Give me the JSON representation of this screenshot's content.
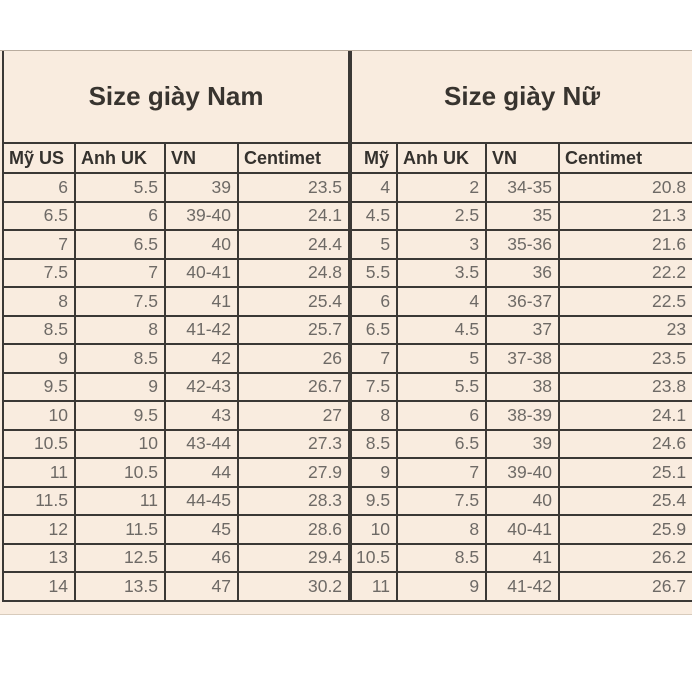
{
  "colors": {
    "page_background": "#ffffff",
    "panel_background": "#f9ecdf",
    "border": "#3b3835",
    "heading_text": "#34312d",
    "data_text": "#6e6a66"
  },
  "chart_data": [
    {
      "type": "table",
      "title": "Size giày Nam",
      "columns": [
        "Mỹ US",
        "Anh UK",
        "VN",
        "Centimet"
      ],
      "rows": [
        [
          "6",
          "5.5",
          "39",
          "23.5"
        ],
        [
          "6.5",
          "6",
          "39-40",
          "24.1"
        ],
        [
          "7",
          "6.5",
          "40",
          "24.4"
        ],
        [
          "7.5",
          "7",
          "40-41",
          "24.8"
        ],
        [
          "8",
          "7.5",
          "41",
          "25.4"
        ],
        [
          "8.5",
          "8",
          "41-42",
          "25.7"
        ],
        [
          "9",
          "8.5",
          "42",
          "26"
        ],
        [
          "9.5",
          "9",
          "42-43",
          "26.7"
        ],
        [
          "10",
          "9.5",
          "43",
          "27"
        ],
        [
          "10.5",
          "10",
          "43-44",
          "27.3"
        ],
        [
          "11",
          "10.5",
          "44",
          "27.9"
        ],
        [
          "11.5",
          "11",
          "44-45",
          "28.3"
        ],
        [
          "12",
          "11.5",
          "45",
          "28.6"
        ],
        [
          "13",
          "12.5",
          "46",
          "29.4"
        ],
        [
          "14",
          "13.5",
          "47",
          "30.2"
        ]
      ]
    },
    {
      "type": "table",
      "title": "Size giày Nữ",
      "columns": [
        "Mỹ",
        "Anh UK",
        "VN",
        "Centimet"
      ],
      "rows": [
        [
          "4",
          "2",
          "34-35",
          "20.8"
        ],
        [
          "4.5",
          "2.5",
          "35",
          "21.3"
        ],
        [
          "5",
          "3",
          "35-36",
          "21.6"
        ],
        [
          "5.5",
          "3.5",
          "36",
          "22.2"
        ],
        [
          "6",
          "4",
          "36-37",
          "22.5"
        ],
        [
          "6.5",
          "4.5",
          "37",
          "23"
        ],
        [
          "7",
          "5",
          "37-38",
          "23.5"
        ],
        [
          "7.5",
          "5.5",
          "38",
          "23.8"
        ],
        [
          "8",
          "6",
          "38-39",
          "24.1"
        ],
        [
          "8.5",
          "6.5",
          "39",
          "24.6"
        ],
        [
          "9",
          "7",
          "39-40",
          "25.1"
        ],
        [
          "9.5",
          "7.5",
          "40",
          "25.4"
        ],
        [
          "10",
          "8",
          "40-41",
          "25.9"
        ],
        [
          "10.5",
          "8.5",
          "41",
          "26.2"
        ],
        [
          "11",
          "9",
          "41-42",
          "26.7"
        ]
      ]
    }
  ]
}
